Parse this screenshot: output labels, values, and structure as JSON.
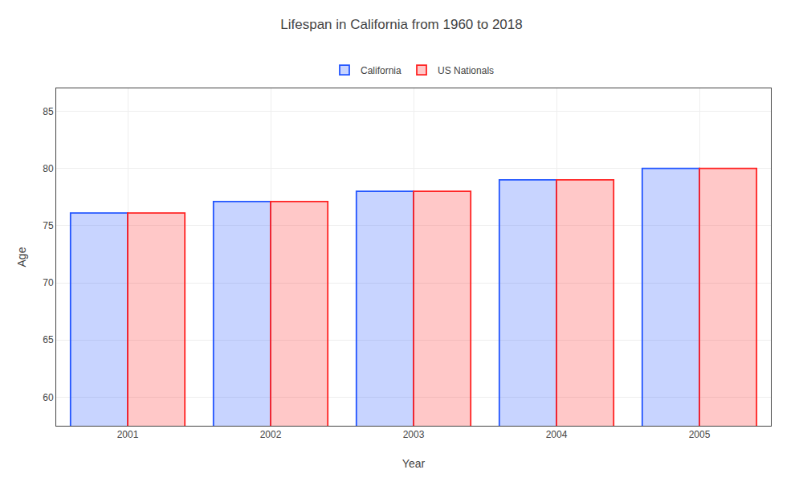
{
  "chart_data": {
    "type": "bar",
    "title": "Lifespan in California from 1960 to 2018",
    "x_label": "Year",
    "y_label": "Age",
    "categories": [
      "2001",
      "2002",
      "2003",
      "2004",
      "2005"
    ],
    "series": [
      {
        "name": "California",
        "color": "#2255ff",
        "values": [
          76.1,
          77.1,
          78.0,
          79.0,
          80.0
        ]
      },
      {
        "name": "US Nationals",
        "color": "#ff2222",
        "values": [
          76.1,
          77.1,
          78.0,
          79.0,
          80.0
        ]
      }
    ],
    "ylim": [
      57.5,
      87.0
    ],
    "yticks": [
      60,
      65,
      70,
      75,
      80,
      85
    ],
    "grid": true,
    "legend": "top"
  }
}
